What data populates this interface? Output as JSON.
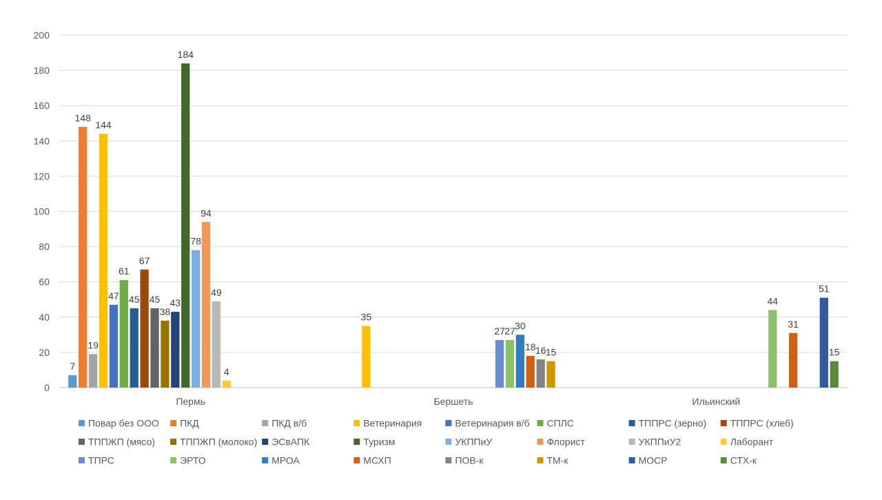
{
  "chart_data": {
    "type": "bar",
    "categories": [
      "Пермь",
      "Бершеть",
      "Ильинский"
    ],
    "ylim": [
      0,
      200
    ],
    "yticks": [
      0,
      20,
      40,
      60,
      80,
      100,
      120,
      140,
      160,
      180,
      200
    ],
    "grid": true,
    "legend_position": "bottom",
    "series": [
      {
        "name": "Повар без ООО",
        "color": "#5b9bd5",
        "values": [
          7,
          null,
          null
        ]
      },
      {
        "name": "ПКД",
        "color": "#ed7d31",
        "values": [
          148,
          null,
          null
        ]
      },
      {
        "name": "ПКД в/б",
        "color": "#a5a5a5",
        "values": [
          19,
          null,
          null
        ]
      },
      {
        "name": "Ветеринария",
        "color": "#ffc000",
        "values": [
          144,
          35,
          null
        ]
      },
      {
        "name": "Ветеринария в/б",
        "color": "#4472c4",
        "values": [
          47,
          null,
          null
        ]
      },
      {
        "name": "СПЛС",
        "color": "#70ad47",
        "values": [
          61,
          null,
          null
        ]
      },
      {
        "name": "ТППРС (зерно)",
        "color": "#255e91",
        "values": [
          45,
          null,
          null
        ]
      },
      {
        "name": "ТППРС (хлеб)",
        "color": "#9e480e",
        "values": [
          67,
          null,
          null
        ]
      },
      {
        "name": "ТППЖП (мясо)",
        "color": "#636363",
        "values": [
          45,
          null,
          null
        ]
      },
      {
        "name": "ТППЖП (молоко)",
        "color": "#997300",
        "values": [
          38,
          null,
          null
        ]
      },
      {
        "name": "ЭСвАПК",
        "color": "#264478",
        "values": [
          43,
          null,
          null
        ]
      },
      {
        "name": "Туризм",
        "color": "#43682b",
        "values": [
          184,
          null,
          null
        ]
      },
      {
        "name": "УКППиУ",
        "color": "#7cafdd",
        "values": [
          78,
          null,
          null
        ]
      },
      {
        "name": "Флорист",
        "color": "#f1975a",
        "values": [
          94,
          null,
          null
        ]
      },
      {
        "name": "УКППиУ2",
        "color": "#b7b7b7",
        "values": [
          49,
          null,
          null
        ]
      },
      {
        "name": "Лаборант",
        "color": "#ffcd33",
        "values": [
          4,
          null,
          null
        ]
      },
      {
        "name": "ТПРС",
        "color": "#698ed0",
        "values": [
          null,
          27,
          null
        ]
      },
      {
        "name": "ЭРТО",
        "color": "#8cc168",
        "values": [
          null,
          27,
          44
        ]
      },
      {
        "name": "МРОА",
        "color": "#327dc2",
        "values": [
          null,
          30,
          null
        ]
      },
      {
        "name": "МСХП",
        "color": "#d26012",
        "values": [
          null,
          18,
          31
        ]
      },
      {
        "name": "ПОВ-к",
        "color": "#848484",
        "values": [
          null,
          16,
          null
        ]
      },
      {
        "name": "ТМ-к",
        "color": "#cc9a00",
        "values": [
          null,
          15,
          null
        ]
      },
      {
        "name": "МОСР",
        "color": "#335aa1",
        "values": [
          null,
          null,
          51
        ]
      },
      {
        "name": "СТХ-к",
        "color": "#5a8a39",
        "values": [
          null,
          null,
          15
        ]
      }
    ]
  }
}
